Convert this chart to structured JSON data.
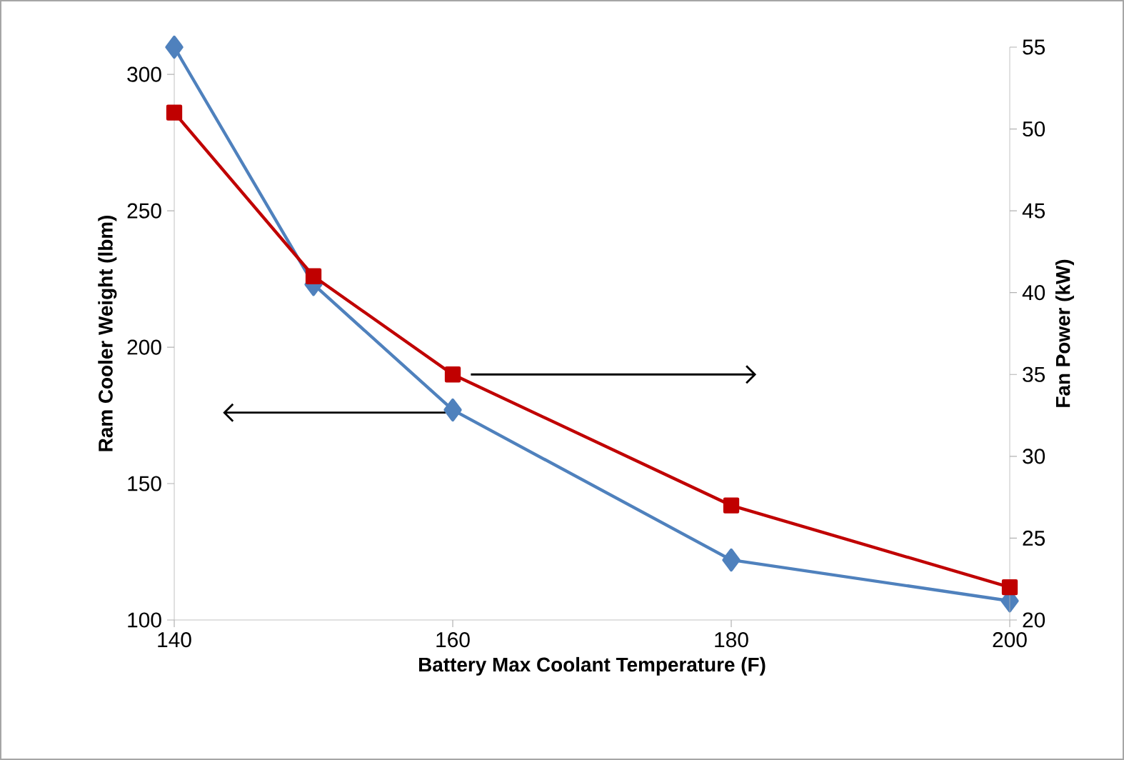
{
  "chart_data": {
    "type": "line",
    "xlabel": "Battery Max Coolant Temperature (F)",
    "ylabel": "Ram Cooler Weight (lbm)",
    "y2label": "Fan Power (kW)",
    "x": [
      140,
      150,
      160,
      180,
      200
    ],
    "xlim": [
      140,
      200
    ],
    "xticks": [
      140,
      160,
      180,
      200
    ],
    "ylim": [
      100,
      310
    ],
    "yticks": [
      100,
      150,
      200,
      250,
      300
    ],
    "y2lim": [
      20,
      55
    ],
    "y2ticks": [
      20,
      25,
      30,
      35,
      40,
      45,
      50,
      55
    ],
    "series": [
      {
        "color": "#4f81bd",
        "marker": "diamond",
        "values": [
          310,
          223,
          177,
          122,
          107
        ]
      },
      {
        "color": "#c00000",
        "marker": "square",
        "axis": "y2",
        "values": [
          51,
          41,
          35,
          27,
          22
        ]
      }
    ]
  }
}
